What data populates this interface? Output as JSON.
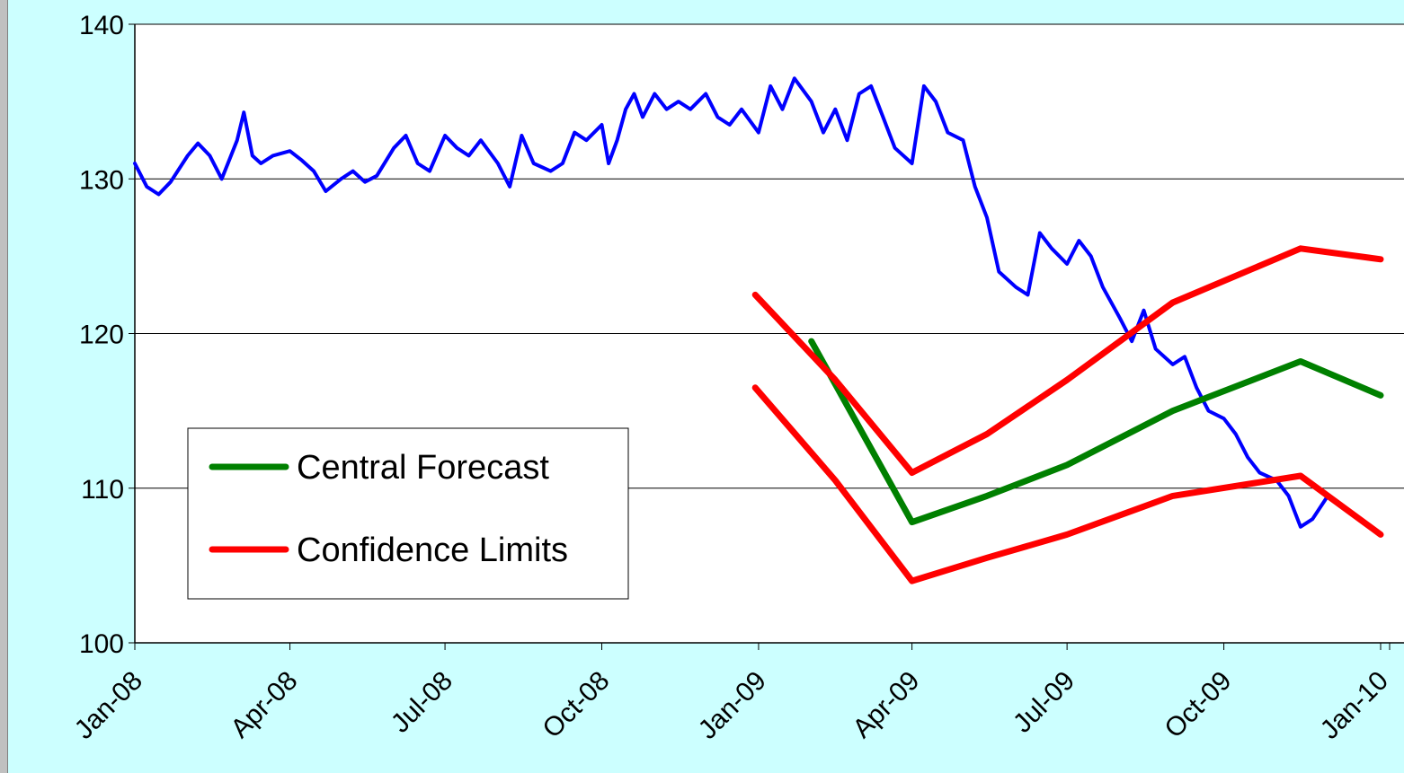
{
  "chart_data": {
    "type": "line",
    "title": "",
    "xlabel": "",
    "ylabel": "",
    "ylim": [
      100,
      140
    ],
    "yticks": [
      100,
      110,
      120,
      130,
      140
    ],
    "xlim": [
      "2008-01-01",
      "2010-01-01"
    ],
    "xtick_labels": [
      "Jan-08",
      "Apr-08",
      "Jul-08",
      "Oct-08",
      "Jan-09",
      "Apr-09",
      "Jul-09",
      "Oct-09",
      "Jan-10"
    ],
    "xtick_dates": [
      "2008-01-01",
      "2008-04-01",
      "2008-07-01",
      "2008-10-01",
      "2009-01-01",
      "2009-04-01",
      "2009-07-01",
      "2009-10-01",
      "2010-01-01"
    ],
    "grid": "horizontal",
    "legend_position": "bottom-left",
    "legend": [
      {
        "label": "Central Forecast",
        "color": "#008000"
      },
      {
        "label": "Confidence Limits",
        "color": "#ff0000"
      }
    ],
    "series": [
      {
        "color": "#0000ff",
        "points": [
          [
            "2008-01-01",
            131.0
          ],
          [
            "2008-01-08",
            129.5
          ],
          [
            "2008-01-15",
            129.0
          ],
          [
            "2008-01-22",
            129.8
          ],
          [
            "2008-02-01",
            131.5
          ],
          [
            "2008-02-07",
            132.3
          ],
          [
            "2008-02-14",
            131.5
          ],
          [
            "2008-02-21",
            130.0
          ],
          [
            "2008-03-01",
            132.5
          ],
          [
            "2008-03-05",
            134.3
          ],
          [
            "2008-03-10",
            131.5
          ],
          [
            "2008-03-15",
            131.0
          ],
          [
            "2008-03-22",
            131.5
          ],
          [
            "2008-04-01",
            131.8
          ],
          [
            "2008-04-08",
            131.2
          ],
          [
            "2008-04-15",
            130.5
          ],
          [
            "2008-04-22",
            129.2
          ],
          [
            "2008-05-01",
            130.0
          ],
          [
            "2008-05-08",
            130.5
          ],
          [
            "2008-05-15",
            129.8
          ],
          [
            "2008-05-22",
            130.2
          ],
          [
            "2008-06-01",
            132.0
          ],
          [
            "2008-06-08",
            132.8
          ],
          [
            "2008-06-15",
            131.0
          ],
          [
            "2008-06-22",
            130.5
          ],
          [
            "2008-07-01",
            132.8
          ],
          [
            "2008-07-08",
            132.0
          ],
          [
            "2008-07-15",
            131.5
          ],
          [
            "2008-07-22",
            132.5
          ],
          [
            "2008-08-01",
            131.0
          ],
          [
            "2008-08-08",
            129.5
          ],
          [
            "2008-08-15",
            132.8
          ],
          [
            "2008-08-22",
            131.0
          ],
          [
            "2008-09-01",
            130.5
          ],
          [
            "2008-09-08",
            131.0
          ],
          [
            "2008-09-15",
            133.0
          ],
          [
            "2008-09-22",
            132.5
          ],
          [
            "2008-10-01",
            133.5
          ],
          [
            "2008-10-05",
            131.0
          ],
          [
            "2008-10-10",
            132.5
          ],
          [
            "2008-10-15",
            134.5
          ],
          [
            "2008-10-20",
            135.5
          ],
          [
            "2008-10-25",
            134.0
          ],
          [
            "2008-11-01",
            135.5
          ],
          [
            "2008-11-08",
            134.5
          ],
          [
            "2008-11-15",
            135.0
          ],
          [
            "2008-11-22",
            134.5
          ],
          [
            "2008-12-01",
            135.5
          ],
          [
            "2008-12-08",
            134.0
          ],
          [
            "2008-12-15",
            133.5
          ],
          [
            "2008-12-22",
            134.5
          ],
          [
            "2009-01-01",
            133.0
          ],
          [
            "2009-01-08",
            136.0
          ],
          [
            "2009-01-15",
            134.5
          ],
          [
            "2009-01-22",
            136.5
          ],
          [
            "2009-02-01",
            135.0
          ],
          [
            "2009-02-08",
            133.0
          ],
          [
            "2009-02-15",
            134.5
          ],
          [
            "2009-02-22",
            132.5
          ],
          [
            "2009-03-01",
            135.5
          ],
          [
            "2009-03-08",
            136.0
          ],
          [
            "2009-03-15",
            134.0
          ],
          [
            "2009-03-22",
            132.0
          ],
          [
            "2009-04-01",
            131.0
          ],
          [
            "2009-04-08",
            136.0
          ],
          [
            "2009-04-15",
            135.0
          ],
          [
            "2009-04-22",
            133.0
          ],
          [
            "2009-05-01",
            132.5
          ],
          [
            "2009-05-08",
            129.5
          ],
          [
            "2009-05-15",
            127.5
          ],
          [
            "2009-05-22",
            124.0
          ],
          [
            "2009-06-01",
            123.0
          ],
          [
            "2009-06-08",
            122.5
          ],
          [
            "2009-06-15",
            126.5
          ],
          [
            "2009-06-22",
            125.5
          ],
          [
            "2009-07-01",
            124.5
          ],
          [
            "2009-07-08",
            126.0
          ],
          [
            "2009-07-15",
            125.0
          ],
          [
            "2009-07-22",
            123.0
          ],
          [
            "2009-08-01",
            121.0
          ],
          [
            "2009-08-08",
            119.5
          ],
          [
            "2009-08-15",
            121.5
          ],
          [
            "2009-08-22",
            119.0
          ],
          [
            "2009-09-01",
            118.0
          ],
          [
            "2009-09-08",
            118.5
          ],
          [
            "2009-09-15",
            116.5
          ],
          [
            "2009-09-22",
            115.0
          ],
          [
            "2009-10-01",
            114.5
          ],
          [
            "2009-10-08",
            113.5
          ],
          [
            "2009-10-15",
            112.0
          ],
          [
            "2009-10-22",
            111.0
          ],
          [
            "2009-11-01",
            110.5
          ],
          [
            "2009-11-08",
            109.5
          ],
          [
            "2009-11-15",
            107.5
          ],
          [
            "2009-11-22",
            108.0
          ],
          [
            "2009-12-01",
            109.5
          ]
        ]
      },
      {
        "name": "Central Forecast",
        "color": "#008000",
        "points": [
          [
            "2009-02-01",
            119.5
          ],
          [
            "2009-04-01",
            107.8
          ],
          [
            "2009-05-15",
            109.5
          ],
          [
            "2009-07-01",
            111.5
          ],
          [
            "2009-09-01",
            115.0
          ],
          [
            "2009-11-15",
            118.2
          ],
          [
            "2010-01-01",
            116.0
          ]
        ]
      },
      {
        "name": "Confidence Limits",
        "color": "#ff0000",
        "points": [
          [
            "2008-12-30",
            122.5
          ],
          [
            "2009-02-15",
            117.0
          ],
          [
            "2009-04-01",
            111.0
          ],
          [
            "2009-05-15",
            113.5
          ],
          [
            "2009-07-01",
            117.0
          ],
          [
            "2009-09-01",
            122.0
          ],
          [
            "2009-11-15",
            125.5
          ],
          [
            "2010-01-01",
            124.8
          ]
        ]
      },
      {
        "name": "Confidence Limits",
        "color": "#ff0000",
        "points": [
          [
            "2008-12-30",
            116.5
          ],
          [
            "2009-02-15",
            110.5
          ],
          [
            "2009-04-01",
            104.0
          ],
          [
            "2009-05-15",
            105.5
          ],
          [
            "2009-07-01",
            107.0
          ],
          [
            "2009-09-01",
            109.5
          ],
          [
            "2009-11-15",
            110.8
          ],
          [
            "2010-01-01",
            107.0
          ]
        ]
      }
    ]
  }
}
